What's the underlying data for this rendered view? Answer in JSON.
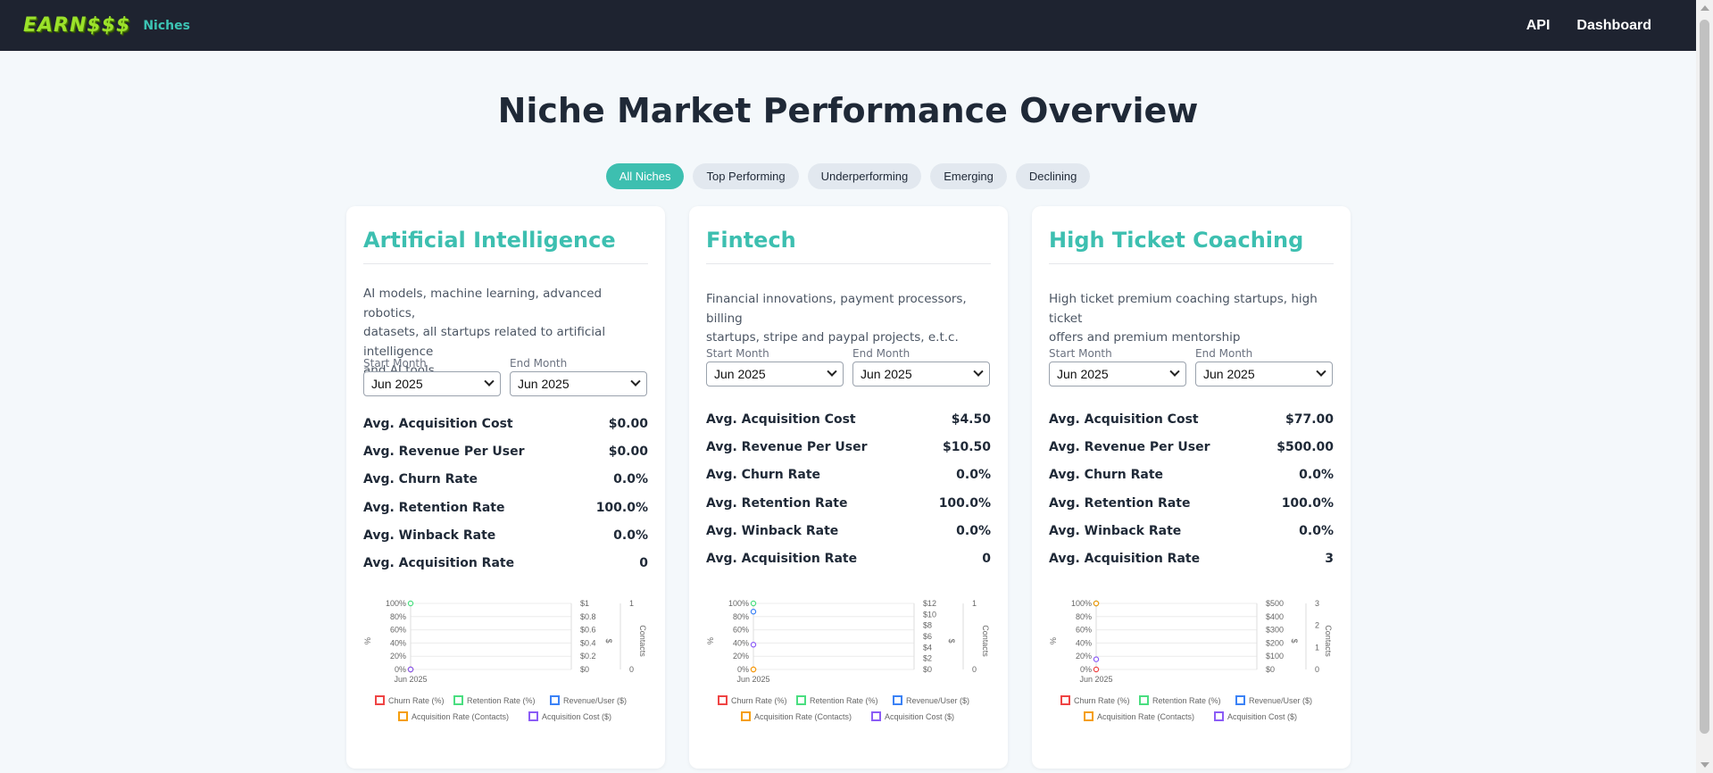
{
  "nav": {
    "logo": "EARN$$$",
    "niches": "Niches",
    "api": "API",
    "dashboard": "Dashboard"
  },
  "page_title": "Niche Market Performance Overview",
  "filters": [
    "All Niches",
    "Top Performing",
    "Underperforming",
    "Emerging",
    "Declining"
  ],
  "active_filter": "All Niches",
  "labels": {
    "start_month": "Start Month",
    "end_month": "End Month",
    "m1": "Avg. Acquisition Cost",
    "m2": "Avg. Revenue Per User",
    "m3": "Avg. Churn Rate",
    "m4": "Avg. Retention Rate",
    "m5": "Avg. Winback Rate",
    "m6": "Avg. Acquisition Rate"
  },
  "legend": [
    "Churn Rate (%)",
    "Retention Rate (%)",
    "Revenue/User ($)",
    "Acquisition Rate (Contacts)",
    "Acquisition Cost ($)"
  ],
  "legend_colors": [
    "#ef4444",
    "#4ade80",
    "#3b82f6",
    "#f59e0b",
    "#8b5cf6"
  ],
  "axis_titles": {
    "left": "%",
    "right": "$",
    "far_right": "Contacts"
  },
  "cards": [
    {
      "title": "Artificial Intelligence",
      "desc_lines": [
        "AI models, machine learning, advanced robotics,",
        "datasets, all startups related to artificial intelligence",
        "and AI tools"
      ],
      "start": "Jun 2025",
      "end": "Jun 2025",
      "metrics": [
        "$0.00",
        "$0.00",
        "0.0%",
        "100.0%",
        "0.0%",
        "0"
      ],
      "chart_data": {
        "type": "scatter",
        "categories": [
          "Jun 2025"
        ],
        "series": [
          {
            "name": "Churn Rate (%)",
            "values": [
              0
            ]
          },
          {
            "name": "Retention Rate (%)",
            "values": [
              100
            ]
          },
          {
            "name": "Revenue/User ($)",
            "values": [
              0
            ]
          },
          {
            "name": "Acquisition Rate (Contacts)",
            "values": [
              0
            ]
          },
          {
            "name": "Acquisition Cost ($)",
            "values": [
              0
            ]
          }
        ],
        "left_ticks": [
          "100%",
          "80%",
          "60%",
          "40%",
          "20%",
          "0%"
        ],
        "right_ticks": [
          "$1",
          "$0.8",
          "$0.6",
          "$0.4",
          "$0.2",
          "$0"
        ],
        "far_ticks": [
          "1",
          "0"
        ],
        "right_max": 1,
        "far_max": 1
      }
    },
    {
      "title": "Fintech",
      "desc_lines": [
        "Financial innovations, payment processors, billing",
        "startups, stripe and paypal projects, e.t.c."
      ],
      "start": "Jun 2025",
      "end": "Jun 2025",
      "metrics": [
        "$4.50",
        "$10.50",
        "0.0%",
        "100.0%",
        "0.0%",
        "0"
      ],
      "chart_data": {
        "type": "scatter",
        "categories": [
          "Jun 2025"
        ],
        "series": [
          {
            "name": "Churn Rate (%)",
            "values": [
              0
            ]
          },
          {
            "name": "Retention Rate (%)",
            "values": [
              100
            ]
          },
          {
            "name": "Revenue/User ($)",
            "values": [
              10.5
            ]
          },
          {
            "name": "Acquisition Rate (Contacts)",
            "values": [
              0
            ]
          },
          {
            "name": "Acquisition Cost ($)",
            "values": [
              4.5
            ]
          }
        ],
        "left_ticks": [
          "100%",
          "80%",
          "60%",
          "40%",
          "20%",
          "0%"
        ],
        "right_ticks": [
          "$12",
          "$10",
          "$8",
          "$6",
          "$4",
          "$2",
          "$0"
        ],
        "far_ticks": [
          "1",
          "0"
        ],
        "right_max": 12,
        "far_max": 1
      }
    },
    {
      "title": "High Ticket Coaching",
      "desc_lines": [
        "High ticket premium coaching startups, high ticket",
        "offers and premium mentorship"
      ],
      "start": "Jun 2025",
      "end": "Jun 2025",
      "metrics": [
        "$77.00",
        "$500.00",
        "0.0%",
        "100.0%",
        "0.0%",
        "3"
      ],
      "chart_data": {
        "type": "scatter",
        "categories": [
          "Jun 2025"
        ],
        "series": [
          {
            "name": "Churn Rate (%)",
            "values": [
              0
            ]
          },
          {
            "name": "Retention Rate (%)",
            "values": [
              100
            ]
          },
          {
            "name": "Revenue/User ($)",
            "values": [
              500
            ]
          },
          {
            "name": "Acquisition Rate (Contacts)",
            "values": [
              3
            ]
          },
          {
            "name": "Acquisition Cost ($)",
            "values": [
              77
            ]
          }
        ],
        "left_ticks": [
          "100%",
          "80%",
          "60%",
          "40%",
          "20%",
          "0%"
        ],
        "right_ticks": [
          "$500",
          "$400",
          "$300",
          "$200",
          "$100",
          "$0"
        ],
        "far_ticks": [
          "3",
          "2",
          "1",
          "0"
        ],
        "right_max": 500,
        "far_max": 3
      }
    }
  ]
}
